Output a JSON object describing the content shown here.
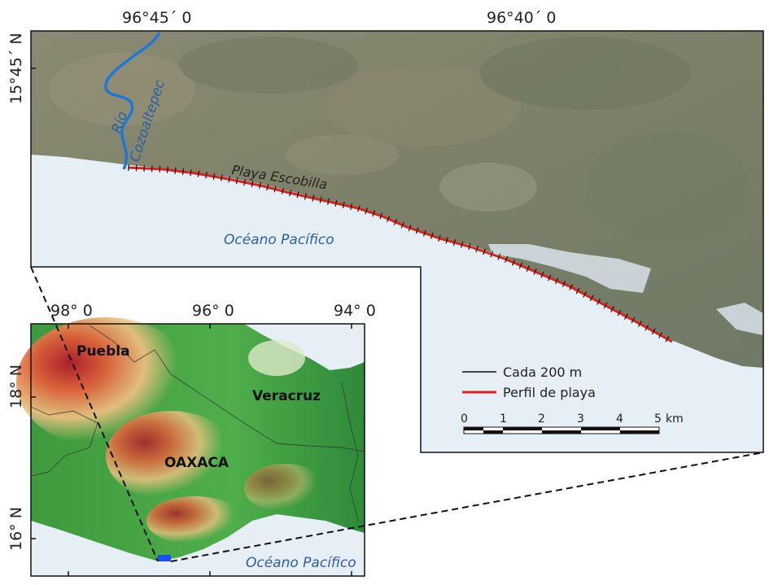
{
  "main_map": {
    "coords_top": [
      "96°45´ 0",
      "96°40´ 0"
    ],
    "coord_left": "15°45´ N",
    "labels": {
      "river_line1": "Río",
      "river_line2": "Cozoaltepec",
      "beach": "Playa Escobilla",
      "ocean": "Océano Pacífico"
    },
    "legend": {
      "items": [
        {
          "label": "Cada 200 m",
          "color": "#111111"
        },
        {
          "label": "Perfil de playa",
          "color": "#e0201a"
        }
      ]
    },
    "scalebar": {
      "ticks": [
        "0",
        "1",
        "2",
        "3",
        "4",
        "5"
      ],
      "unit": "km"
    }
  },
  "inset_map": {
    "coords_top": [
      "98° 0",
      "96° 0",
      "94° 0"
    ],
    "coords_left": [
      "18° N",
      "16° N"
    ],
    "labels": {
      "puebla": "Puebla",
      "veracruz": "Veracruz",
      "oaxaca": "OAXACA",
      "ocean": "Océano Pacífico"
    },
    "marker_color": "#1a4fff"
  },
  "colors": {
    "water": "#e6eef6",
    "profile": "#e0201a",
    "river": "#1f78d8"
  }
}
